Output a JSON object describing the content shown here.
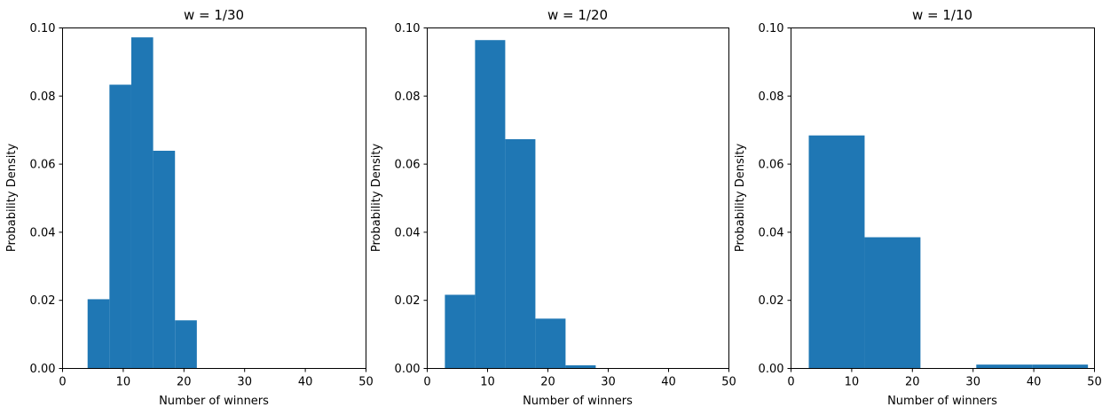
{
  "chart_data": [
    {
      "type": "bar",
      "title": "w = 1/30",
      "xlabel": "Number of winners",
      "ylabel": "Probability Density",
      "xlim": [
        0,
        50
      ],
      "ylim": [
        0,
        0.1
      ],
      "xticks": [
        "0",
        "10",
        "20",
        "30",
        "40",
        "50"
      ],
      "yticks": [
        "0.00",
        "0.02",
        "0.04",
        "0.06",
        "0.08",
        "0.10"
      ],
      "color": "#1f77b4",
      "bins": [
        {
          "x0": 4.2,
          "x1": 7.8,
          "value": 0.0202
        },
        {
          "x0": 7.8,
          "x1": 11.4,
          "value": 0.0832
        },
        {
          "x0": 11.4,
          "x1": 15.0,
          "value": 0.0971
        },
        {
          "x0": 15.0,
          "x1": 18.6,
          "value": 0.0638
        },
        {
          "x0": 18.6,
          "x1": 22.2,
          "value": 0.014
        }
      ]
    },
    {
      "type": "bar",
      "title": "w = 1/20",
      "xlabel": "Number of winners",
      "ylabel": "Probability Density",
      "xlim": [
        0,
        50
      ],
      "ylim": [
        0,
        0.1
      ],
      "xticks": [
        "0",
        "10",
        "20",
        "30",
        "40",
        "50"
      ],
      "yticks": [
        "0.00",
        "0.02",
        "0.04",
        "0.06",
        "0.08",
        "0.10"
      ],
      "color": "#1f77b4",
      "bins": [
        {
          "x0": 3.0,
          "x1": 8.0,
          "value": 0.0215
        },
        {
          "x0": 8.0,
          "x1": 13.0,
          "value": 0.0963
        },
        {
          "x0": 13.0,
          "x1": 18.0,
          "value": 0.0672
        },
        {
          "x0": 18.0,
          "x1": 23.0,
          "value": 0.0145
        },
        {
          "x0": 23.0,
          "x1": 28.0,
          "value": 0.0008
        }
      ]
    },
    {
      "type": "bar",
      "title": "w = 1/10",
      "xlabel": "Number of winners",
      "ylabel": "Probability Density",
      "xlim": [
        0,
        50
      ],
      "ylim": [
        0,
        0.1
      ],
      "xticks": [
        "0",
        "10",
        "20",
        "30",
        "40",
        "50"
      ],
      "yticks": [
        "0.00",
        "0.02",
        "0.04",
        "0.06",
        "0.08",
        "0.10"
      ],
      "color": "#1f77b4",
      "bins": [
        {
          "x0": 3.0,
          "x1": 12.2,
          "value": 0.0683
        },
        {
          "x0": 12.2,
          "x1": 21.4,
          "value": 0.0384
        },
        {
          "x0": 21.4,
          "x1": 30.6,
          "value": 0.0
        },
        {
          "x0": 30.6,
          "x1": 39.8,
          "value": 0.001
        },
        {
          "x0": 39.8,
          "x1": 49.0,
          "value": 0.001
        }
      ]
    }
  ]
}
